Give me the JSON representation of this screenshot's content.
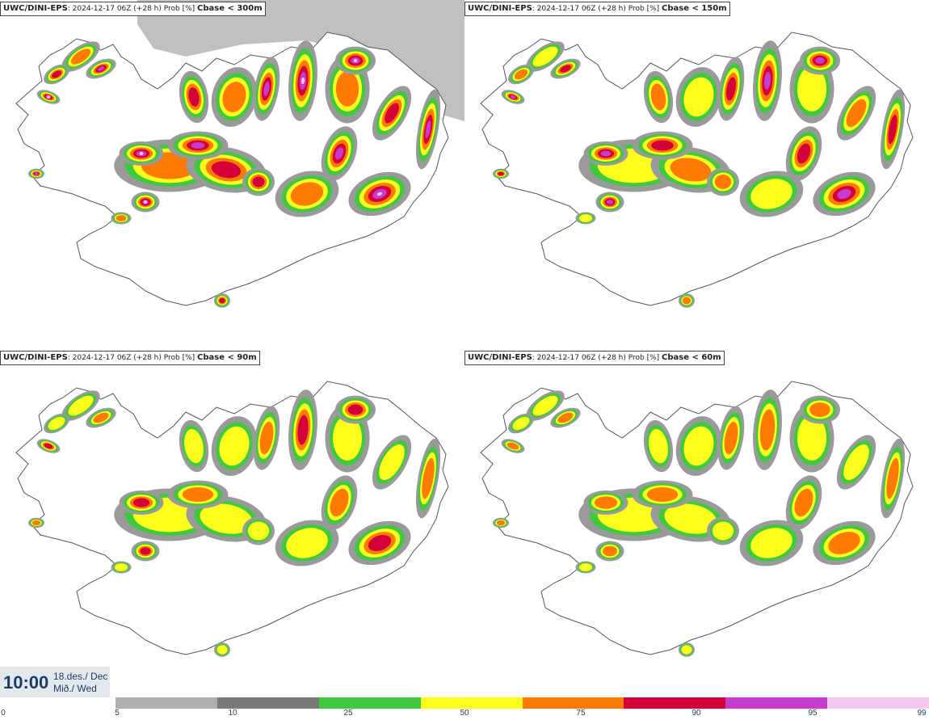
{
  "panels": [
    {
      "source": "UWC/DINI-EPS",
      "meta": ": 2024-12-17 06Z (+28 h) Prob [%] ",
      "variable": "Cbase < 300m",
      "intensity": 1.0
    },
    {
      "source": "UWC/DINI-EPS",
      "meta": ": 2024-12-17 06Z (+28 h) Prob [%] ",
      "variable": "Cbase < 150m",
      "intensity": 0.82
    },
    {
      "source": "UWC/DINI-EPS",
      "meta": ": 2024-12-17 06Z (+28 h) Prob [%] ",
      "variable": "Cbase < 90m",
      "intensity": 0.62
    },
    {
      "source": "UWC/DINI-EPS",
      "meta": ": 2024-12-17 06Z (+28 h) Prob [%] ",
      "variable": "Cbase < 60m",
      "intensity": 0.55
    }
  ],
  "time": {
    "clock": "10:00",
    "date_line1": "18.des./ Dec",
    "date_line2": "Mið./ Wed"
  },
  "colorbar": {
    "ticks": [
      "0",
      "5",
      "10",
      "25",
      "50",
      "75",
      "90",
      "95",
      "99"
    ],
    "colors": [
      "#b0b0b0",
      "#7a7a7a",
      "#3ec93e",
      "#ffff1e",
      "#ff7a00",
      "#d4003a",
      "#c83ccd",
      "#f7c8ee"
    ]
  }
}
